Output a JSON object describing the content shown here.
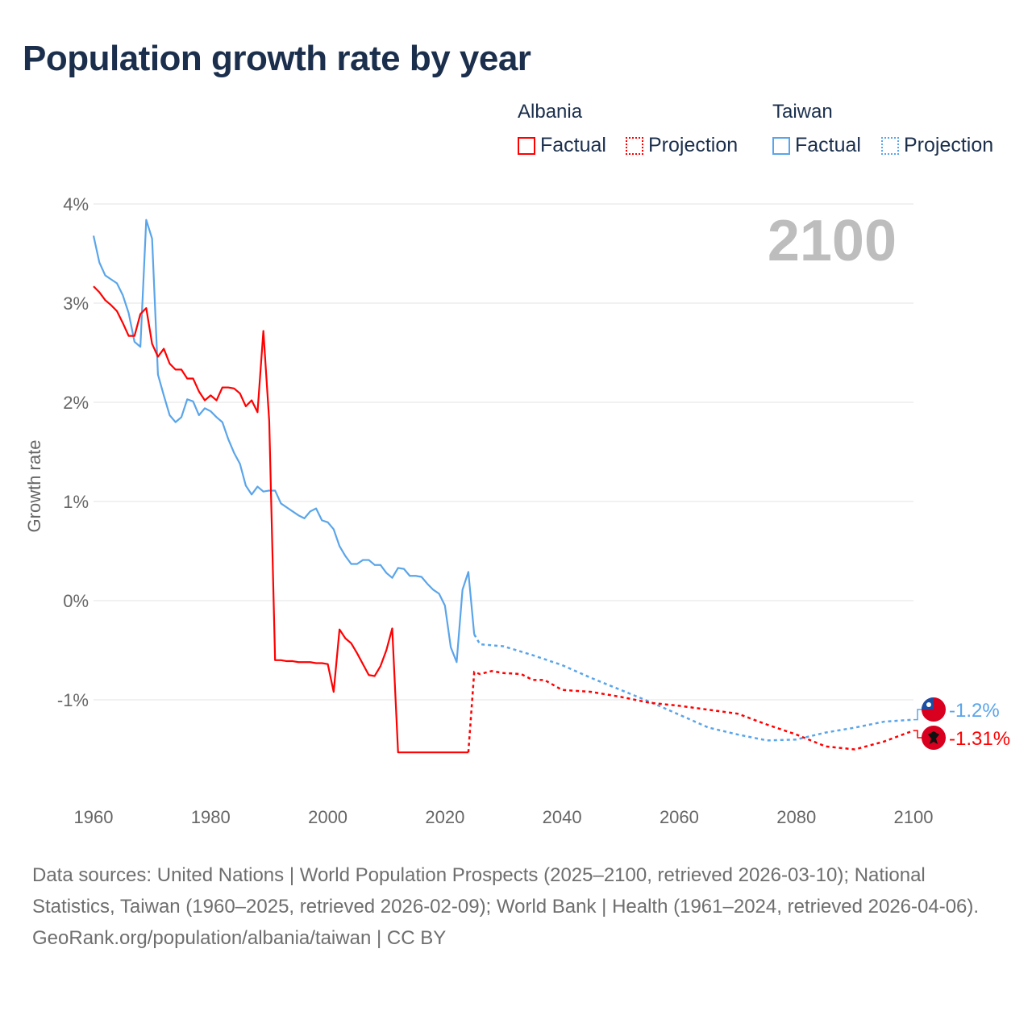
{
  "title": "Population growth rate by year",
  "legend": {
    "groups": [
      {
        "name": "Albania",
        "color": "#ff0000",
        "factual_label": "Factual",
        "projection_label": "Projection"
      },
      {
        "name": "Taiwan",
        "color": "#5aa5ea",
        "factual_label": "Factual",
        "projection_label": "Projection"
      }
    ]
  },
  "footer": {
    "sources": "Data sources: United Nations | World Population Prospects (2025–2100, retrieved 2026-03-10); National Statistics, Taiwan (1960–2025, retrieved 2026-02-09); World Bank | Health (1961–2024, retrieved 2026-04-06).",
    "credit": "GeoRank.org/population/albania/taiwan | CC BY"
  },
  "chart_data": {
    "type": "line",
    "title": "Population growth rate by year",
    "ylabel": "Growth rate",
    "xlabel": "",
    "current_year_label": "2100",
    "xlim": [
      1960,
      2100
    ],
    "ylim": [
      -1.8,
      4.0
    ],
    "x_ticks": [
      1960,
      1980,
      2000,
      2020,
      2040,
      2060,
      2080,
      2100
    ],
    "y_ticks": [
      {
        "v": 4,
        "label": "4%"
      },
      {
        "v": 3,
        "label": "3%"
      },
      {
        "v": 2,
        "label": "2%"
      },
      {
        "v": 1,
        "label": "1%"
      },
      {
        "v": 0,
        "label": "0%"
      },
      {
        "v": -1,
        "label": "-1%"
      }
    ],
    "grid": true,
    "series": [
      {
        "name": "Taiwan",
        "color": "#5aa5ea",
        "end_label": "-1.2%",
        "factual_start": 1960,
        "factual": [
          3.68,
          3.41,
          3.28,
          3.24,
          3.2,
          3.08,
          2.9,
          2.61,
          2.56,
          3.84,
          3.65,
          2.28,
          2.07,
          1.87,
          1.8,
          1.85,
          2.03,
          2.01,
          1.87,
          1.94,
          1.91,
          1.85,
          1.8,
          1.63,
          1.49,
          1.38,
          1.16,
          1.07,
          1.15,
          1.1,
          1.11,
          1.11,
          0.98,
          0.94,
          0.9,
          0.86,
          0.83,
          0.9,
          0.93,
          0.81,
          0.79,
          0.72,
          0.55,
          0.45,
          0.37,
          0.37,
          0.41,
          0.41,
          0.36,
          0.36,
          0.28,
          0.23,
          0.33,
          0.32,
          0.25,
          0.25,
          0.24,
          0.17,
          0.11,
          0.07,
          -0.05,
          -0.47,
          -0.62,
          0.11,
          0.29,
          -0.34
        ],
        "projection": [
          [
            2025,
            -0.34
          ],
          [
            2026,
            -0.44
          ],
          [
            2030,
            -0.46
          ],
          [
            2035,
            -0.55
          ],
          [
            2040,
            -0.65
          ],
          [
            2045,
            -0.78
          ],
          [
            2050,
            -0.9
          ],
          [
            2055,
            -1.02
          ],
          [
            2060,
            -1.15
          ],
          [
            2065,
            -1.28
          ],
          [
            2070,
            -1.35
          ],
          [
            2075,
            -1.41
          ],
          [
            2080,
            -1.4
          ],
          [
            2085,
            -1.33
          ],
          [
            2090,
            -1.28
          ],
          [
            2095,
            -1.22
          ],
          [
            2100,
            -1.2
          ]
        ]
      },
      {
        "name": "Albania",
        "color": "#ff0000",
        "end_label": "-1.31%",
        "factual_start": 1960,
        "factual": [
          3.17,
          3.11,
          3.03,
          2.98,
          2.92,
          2.8,
          2.67,
          2.67,
          2.89,
          2.95,
          2.59,
          2.46,
          2.54,
          2.39,
          2.33,
          2.33,
          2.24,
          2.24,
          2.11,
          2.02,
          2.07,
          2.02,
          2.15,
          2.15,
          2.14,
          2.09,
          1.96,
          2.02,
          1.9,
          2.72,
          1.81,
          -0.6,
          -0.6,
          -0.61,
          -0.61,
          -0.62,
          -0.62,
          -0.62,
          -0.63,
          -0.63,
          -0.64,
          -0.92,
          -0.29,
          -0.38,
          -0.43,
          -0.53,
          -0.64,
          -0.75,
          -0.76,
          -0.66,
          -0.5,
          -0.28,
          -1.53,
          -1.53,
          -1.53,
          -1.53,
          -1.53,
          -1.53,
          -1.53,
          -1.53,
          -1.53,
          -1.53,
          -1.53,
          -1.53,
          -1.53
        ],
        "projection": [
          [
            2024,
            -1.53
          ],
          [
            2025,
            -0.72
          ],
          [
            2026,
            -0.74
          ],
          [
            2028,
            -0.71
          ],
          [
            2030,
            -0.73
          ],
          [
            2033,
            -0.74
          ],
          [
            2035,
            -0.8
          ],
          [
            2037,
            -0.8
          ],
          [
            2040,
            -0.9
          ],
          [
            2045,
            -0.92
          ],
          [
            2050,
            -0.97
          ],
          [
            2055,
            -1.03
          ],
          [
            2060,
            -1.06
          ],
          [
            2065,
            -1.1
          ],
          [
            2070,
            -1.14
          ],
          [
            2075,
            -1.25
          ],
          [
            2080,
            -1.35
          ],
          [
            2085,
            -1.47
          ],
          [
            2090,
            -1.5
          ],
          [
            2095,
            -1.42
          ],
          [
            2100,
            -1.31
          ]
        ]
      }
    ]
  }
}
